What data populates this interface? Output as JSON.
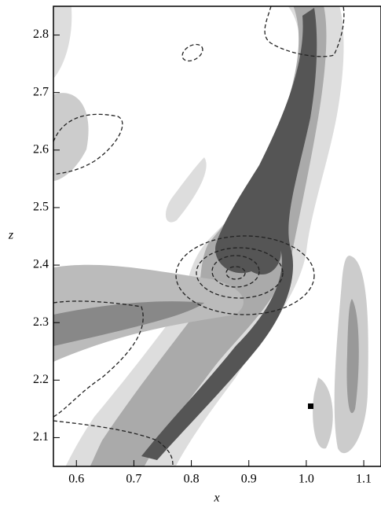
{
  "chart_data": {
    "type": "contour",
    "x_label": "x",
    "y_label": "z",
    "xlim": [
      0.56,
      1.13
    ],
    "xticks": [
      0.6,
      0.7,
      0.8,
      0.9,
      {
        "value": 1.0,
        "label": "1.0"
      },
      1.1
    ],
    "ylim": [
      2.05,
      2.85
    ],
    "yticks": [
      2.1,
      2.2,
      2.3,
      2.4,
      2.5,
      2.6,
      2.7,
      2.8
    ]
  }
}
